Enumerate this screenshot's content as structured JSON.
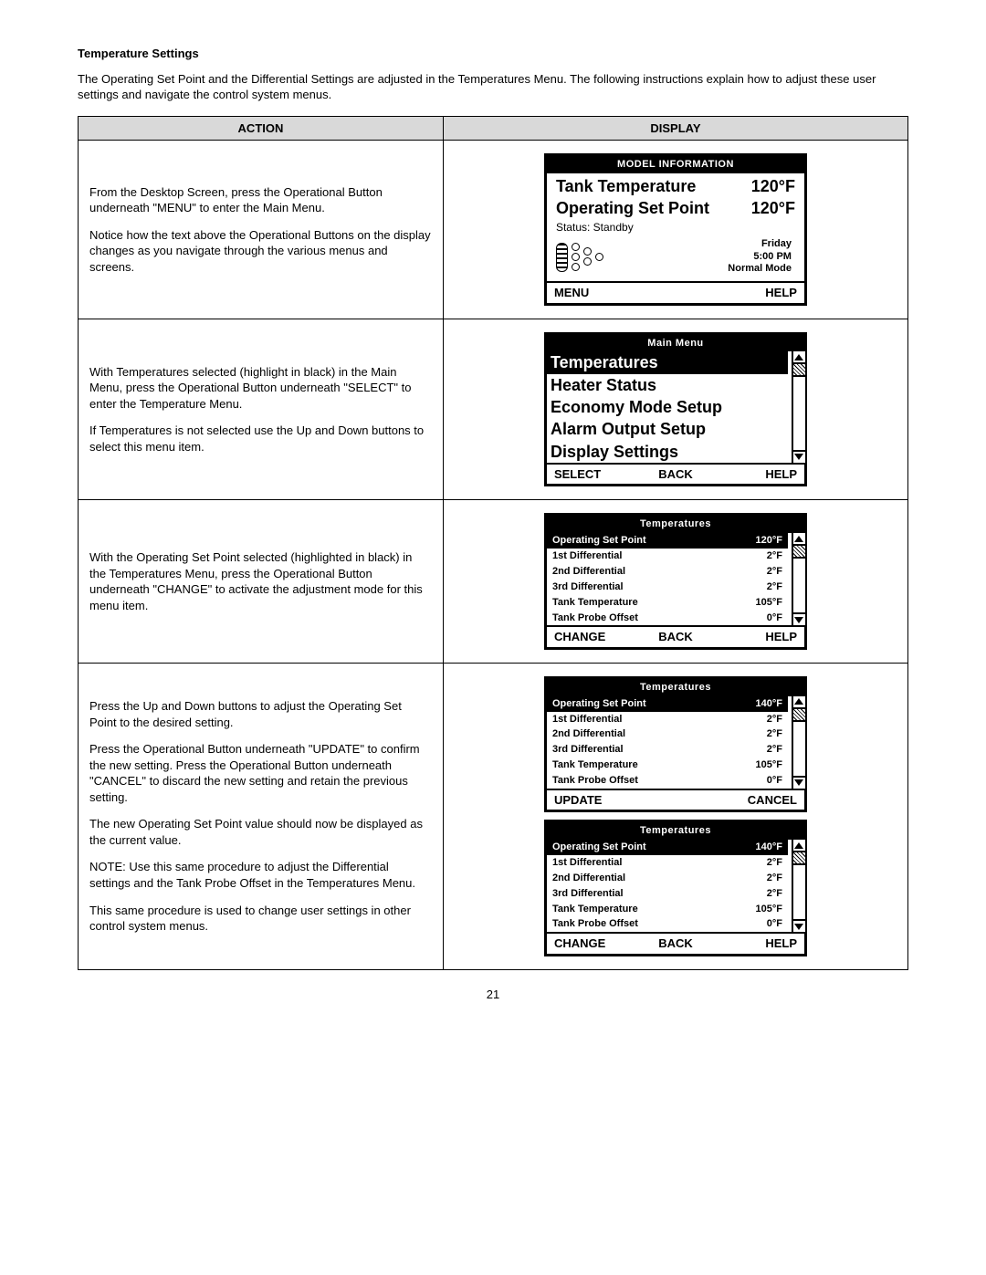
{
  "section_title": "Temperature Settings",
  "intro": "The Operating Set Point and the Differential Settings are adjusted in the Temperatures Menu. The following instructions explain how to adjust these user settings and navigate the control system menus.",
  "headers": {
    "action": "ACTION",
    "display": "DISPLAY"
  },
  "page_number": "21",
  "row1": {
    "action": [
      "From the Desktop Screen, press the Operational Button underneath \"MENU\" to enter the Main Menu.",
      "Notice how the text above the Operational Buttons on the display changes as you navigate through the various menus and screens."
    ],
    "display": {
      "header": "MODEL  INFORMATION",
      "lines": [
        {
          "label": "Tank Temperature",
          "value": "120°F"
        },
        {
          "label": "Operating Set Point",
          "value": "120°F"
        }
      ],
      "status": "Status: Standby",
      "right_info": {
        "day": "Friday",
        "time": "5:00 PM",
        "mode": "Normal Mode"
      },
      "footer": {
        "left": "MENU",
        "right": "HELP"
      }
    }
  },
  "row2": {
    "action": [
      "With Temperatures selected (highlight in black) in the Main Menu, press the Operational Button underneath \"SELECT\" to enter the Temperature Menu.",
      "If Temperatures is not selected use the Up and Down buttons to select this menu item."
    ],
    "display": {
      "header": "Main Menu",
      "items": [
        "Temperatures",
        "Heater Status",
        "Economy Mode Setup",
        "Alarm Output Setup",
        "Display Settings"
      ],
      "selected_index": 0,
      "footer": {
        "left": "SELECT",
        "mid": "BACK",
        "right": "HELP"
      }
    }
  },
  "row3": {
    "action": [
      "With the Operating Set Point selected (highlighted in black) in the Temperatures Menu, press the Operational Button underneath \"CHANGE\" to activate the adjustment mode for this menu item."
    ],
    "display": {
      "header": "Temperatures",
      "rows": [
        {
          "label": "Operating Set Point",
          "value": "120°F",
          "selected": true
        },
        {
          "label": "1st Differential",
          "value": "2°F"
        },
        {
          "label": "2nd Differential",
          "value": "2°F"
        },
        {
          "label": "3rd Differential",
          "value": "2°F"
        },
        {
          "label": "Tank Temperature",
          "value": "105°F"
        },
        {
          "label": "Tank Probe Offset",
          "value": "0°F"
        }
      ],
      "footer": {
        "left": "CHANGE",
        "mid": "BACK",
        "right": "HELP"
      }
    }
  },
  "row4": {
    "action": [
      "Press the Up and Down buttons to adjust the Operating Set Point to the desired setting.",
      "Press the Operational Button underneath \"UPDATE\" to confirm the new setting. Press the Operational Button underneath \"CANCEL\" to discard the new setting and retain the previous setting.",
      "The new Operating Set Point value should now be displayed as the current value.",
      "NOTE: Use this same procedure to adjust the Differential settings and the Tank Probe Offset in the Temperatures Menu.",
      "This same procedure is used to change user settings in other control system menus."
    ],
    "display_a": {
      "header": "Temperatures",
      "rows": [
        {
          "label": "Operating Set Point",
          "value": "140°F",
          "selected": true
        },
        {
          "label": "1st Differential",
          "value": "2°F"
        },
        {
          "label": "2nd Differential",
          "value": "2°F"
        },
        {
          "label": "3rd Differential",
          "value": "2°F"
        },
        {
          "label": "Tank Temperature",
          "value": "105°F"
        },
        {
          "label": "Tank Probe Offset",
          "value": "0°F"
        }
      ],
      "footer": {
        "left": "UPDATE",
        "right": "CANCEL"
      }
    },
    "display_b": {
      "header": "Temperatures",
      "rows": [
        {
          "label": "Operating Set Point",
          "value": "140°F",
          "selected": true
        },
        {
          "label": "1st Differential",
          "value": "2°F"
        },
        {
          "label": "2nd Differential",
          "value": "2°F"
        },
        {
          "label": "3rd Differential",
          "value": "2°F"
        },
        {
          "label": "Tank Temperature",
          "value": "105°F"
        },
        {
          "label": "Tank Probe Offset",
          "value": "0°F"
        }
      ],
      "footer": {
        "left": "CHANGE",
        "mid": "BACK",
        "right": "HELP"
      }
    }
  }
}
